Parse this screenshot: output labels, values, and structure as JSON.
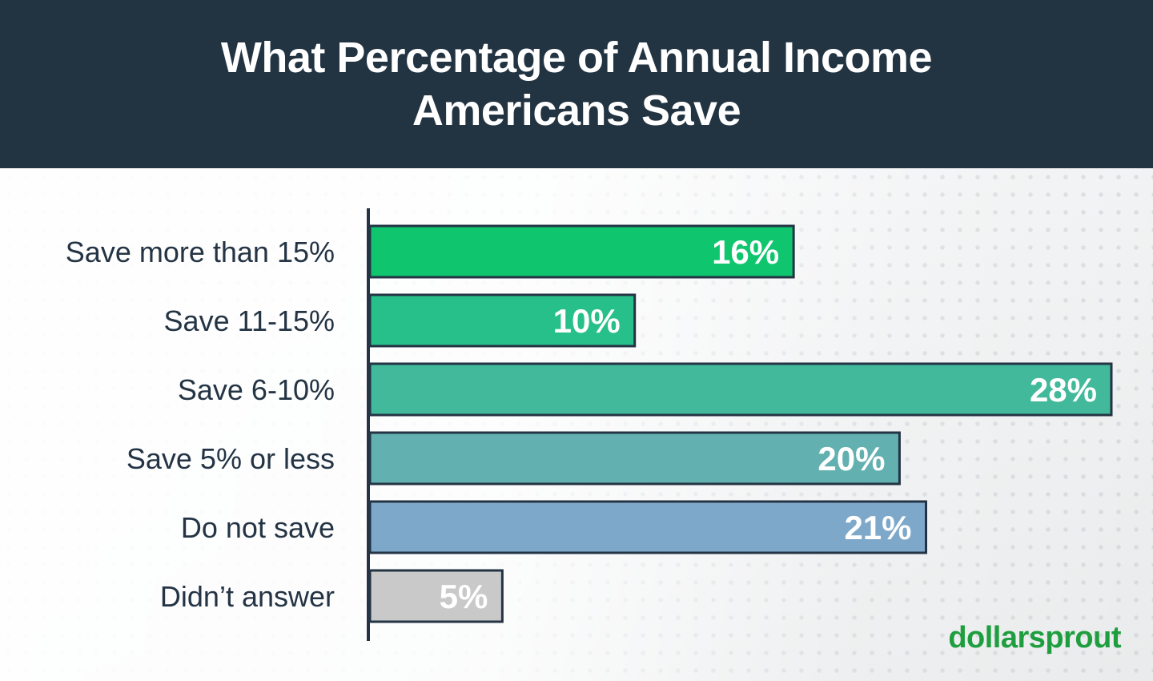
{
  "header": {
    "title_line1": "What Percentage of Annual Income",
    "title_line2": "Americans Save"
  },
  "chart_data": {
    "type": "bar",
    "orientation": "horizontal",
    "title": "What Percentage of Annual Income Americans Save",
    "categories": [
      "Save more than 15%",
      "Save 11-15%",
      "Save 6-10%",
      "Save 5% or less",
      "Do not save",
      "Didn’t answer"
    ],
    "values": [
      16,
      10,
      28,
      20,
      21,
      5
    ],
    "value_labels": [
      "16%",
      "10%",
      "28%",
      "20%",
      "21%",
      "5%"
    ],
    "colors": [
      "#0fc66e",
      "#27c08a",
      "#41b99a",
      "#62b0b0",
      "#7ea8c9",
      "#c9c9c9"
    ],
    "xlim": [
      0,
      28
    ],
    "grid": false,
    "legend": "none"
  },
  "logo": {
    "text": "dollarsprout",
    "color": "#1e9e3e"
  }
}
